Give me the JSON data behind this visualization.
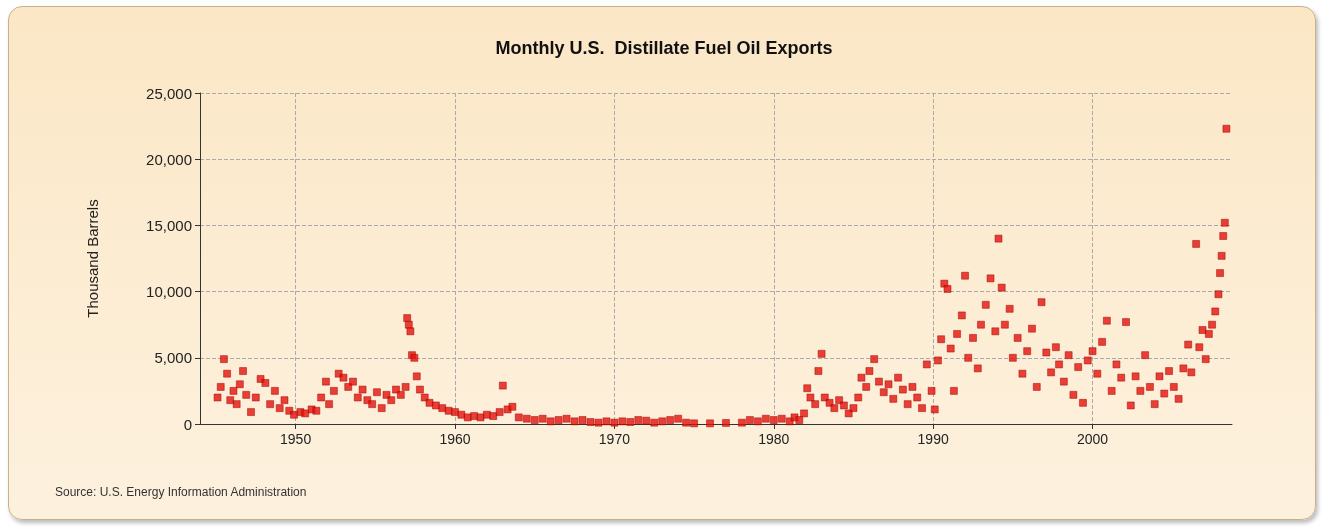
{
  "chart_data": {
    "type": "scatter",
    "title": "Monthly U.S.  Distillate Fuel Oil Exports",
    "ylabel": "Thousand Barrels",
    "annotations": [
      "Source: U.S. Energy Information Administration"
    ],
    "marker": "square",
    "grid": true,
    "xlim": [
      1944,
      2008.75
    ],
    "xticks": [
      1950,
      1960,
      1970,
      1980,
      1990,
      2000
    ],
    "ylim": [
      0,
      25000
    ],
    "yticks": [
      {
        "value": 0,
        "label": "0"
      },
      {
        "value": 5000,
        "label": "5,000"
      },
      {
        "value": 10000,
        "label": "10,000"
      },
      {
        "value": 15000,
        "label": "15,000"
      },
      {
        "value": 20000,
        "label": "20,000"
      },
      {
        "value": 25000,
        "label": "25,000"
      }
    ],
    "series": [
      {
        "color": "#e3120b",
        "x": [
          1945.1,
          1945.3,
          1945.5,
          1945.7,
          1945.9,
          1946.1,
          1946.3,
          1946.5,
          1946.7,
          1946.9,
          1947.2,
          1947.5,
          1947.8,
          1948.1,
          1948.4,
          1948.7,
          1949.0,
          1949.3,
          1949.6,
          1949.9,
          1950.3,
          1950.6,
          1951.0,
          1951.3,
          1951.6,
          1951.9,
          1952.1,
          1952.4,
          1952.7,
          1953.0,
          1953.3,
          1953.6,
          1953.9,
          1954.2,
          1954.5,
          1954.8,
          1955.1,
          1955.4,
          1955.7,
          1956.0,
          1956.3,
          1956.6,
          1956.9,
          1957.0,
          1957.1,
          1957.2,
          1957.3,
          1957.45,
          1957.6,
          1957.8,
          1958.1,
          1958.4,
          1958.8,
          1959.2,
          1959.6,
          1960.0,
          1960.4,
          1960.8,
          1961.2,
          1961.6,
          1962.0,
          1962.4,
          1962.8,
          1963.0,
          1963.3,
          1963.6,
          1964.0,
          1964.5,
          1965.0,
          1965.5,
          1966.0,
          1966.5,
          1967.0,
          1967.5,
          1968.0,
          1968.5,
          1969.0,
          1969.5,
          1970.0,
          1970.5,
          1971.0,
          1971.5,
          1972.0,
          1972.5,
          1973.0,
          1973.5,
          1974.0,
          1974.5,
          1975.0,
          1976.0,
          1977.0,
          1978.0,
          1978.5,
          1979.0,
          1979.5,
          1980.0,
          1980.5,
          1981.0,
          1981.3,
          1981.6,
          1981.9,
          1982.1,
          1982.3,
          1982.6,
          1982.8,
          1983.0,
          1983.2,
          1983.5,
          1983.8,
          1984.1,
          1984.4,
          1984.7,
          1985.0,
          1985.3,
          1985.5,
          1985.8,
          1986.0,
          1986.3,
          1986.6,
          1986.9,
          1987.2,
          1987.5,
          1987.8,
          1988.1,
          1988.4,
          1988.7,
          1989.0,
          1989.3,
          1989.6,
          1989.9,
          1990.1,
          1990.3,
          1990.5,
          1990.7,
          1990.9,
          1991.1,
          1991.3,
          1991.5,
          1991.8,
          1992.0,
          1992.2,
          1992.5,
          1992.8,
          1993.0,
          1993.3,
          1993.6,
          1993.9,
          1994.1,
          1994.3,
          1994.5,
          1994.8,
          1995.0,
          1995.3,
          1995.6,
          1995.9,
          1996.2,
          1996.5,
          1996.8,
          1997.1,
          1997.4,
          1997.7,
          1997.9,
          1998.2,
          1998.5,
          1998.8,
          1999.1,
          1999.4,
          1999.7,
          2000.0,
          2000.3,
          2000.6,
          2000.9,
          2001.2,
          2001.5,
          2001.8,
          2002.1,
          2002.4,
          2002.7,
          2003.0,
          2003.3,
          2003.6,
          2003.9,
          2004.2,
          2004.5,
          2004.8,
          2005.1,
          2005.4,
          2005.7,
          2006.0,
          2006.2,
          2006.5,
          2006.7,
          2006.9,
          2007.1,
          2007.3,
          2007.5,
          2007.7,
          2007.9,
          2008.0,
          2008.1,
          2008.2,
          2008.3,
          2008.4
        ],
        "values": [
          2000,
          2800,
          4900,
          3800,
          1800,
          2500,
          1500,
          3000,
          4000,
          2200,
          900,
          2000,
          3400,
          3100,
          1500,
          2500,
          1200,
          1800,
          1000,
          700,
          900,
          800,
          1100,
          1000,
          2000,
          3200,
          1500,
          2500,
          3800,
          3500,
          2800,
          3200,
          2000,
          2600,
          1800,
          1500,
          2400,
          1200,
          2200,
          1800,
          2600,
          2200,
          2800,
          8000,
          7500,
          7000,
          5200,
          5000,
          3600,
          2600,
          2000,
          1600,
          1400,
          1200,
          1000,
          900,
          700,
          500,
          600,
          500,
          700,
          600,
          900,
          2900,
          1100,
          1300,
          500,
          400,
          300,
          400,
          200,
          300,
          400,
          200,
          300,
          150,
          100,
          200,
          100,
          200,
          150,
          300,
          250,
          100,
          200,
          300,
          400,
          100,
          50,
          50,
          80,
          100,
          300,
          200,
          400,
          300,
          400,
          200,
          500,
          300,
          800,
          2700,
          2000,
          1500,
          4000,
          5300,
          2000,
          1600,
          1200,
          1800,
          1400,
          800,
          1200,
          2000,
          3500,
          2800,
          4000,
          4900,
          3200,
          2400,
          3000,
          1900,
          3500,
          2600,
          1500,
          2800,
          2000,
          1200,
          4500,
          2500,
          1100,
          4800,
          6400,
          10600,
          10200,
          5700,
          2500,
          6800,
          8200,
          11200,
          5000,
          6500,
          4200,
          7500,
          9000,
          11000,
          7000,
          14000,
          10300,
          7500,
          8700,
          5000,
          6500,
          3800,
          5500,
          7200,
          2800,
          9200,
          5400,
          3900,
          5800,
          4500,
          3200,
          5200,
          2200,
          4300,
          1600,
          4800,
          5500,
          3800,
          6200,
          7800,
          2500,
          4500,
          3500,
          7700,
          1400,
          3600,
          2500,
          5200,
          2800,
          1500,
          3600,
          2300,
          4000,
          2800,
          1900,
          4200,
          6000,
          3900,
          13600,
          5800,
          7100,
          4900,
          6800,
          7500,
          8500,
          9800,
          11400,
          12700,
          14200,
          15200,
          22300
        ]
      }
    ]
  }
}
